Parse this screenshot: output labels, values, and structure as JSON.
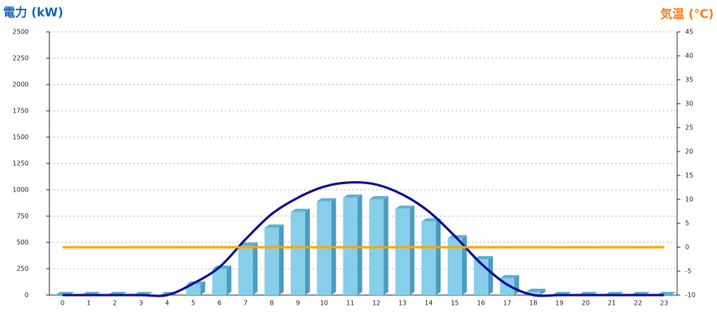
{
  "chart_data": {
    "type": "bar",
    "ylabel": "電力 (kW)",
    "ylabel_color": "#1565c0",
    "y2label": "気温 (℃)",
    "y2label_color": "#f08020",
    "categories": [
      "0",
      "1",
      "2",
      "3",
      "4",
      "5",
      "6",
      "7",
      "8",
      "9",
      "10",
      "11",
      "12",
      "13",
      "14",
      "15",
      "16",
      "17",
      "18",
      "19",
      "20",
      "21",
      "22",
      "23"
    ],
    "ylim": [
      0,
      2500
    ],
    "yticks": [
      0,
      250,
      500,
      750,
      1000,
      1250,
      1500,
      1750,
      2000,
      2250,
      2500
    ],
    "y2lim": [
      -10,
      45
    ],
    "y2ticks": [
      -10,
      -5,
      0,
      5,
      10,
      15,
      20,
      25,
      30,
      35,
      40,
      45
    ],
    "grid": true,
    "series": [
      {
        "type": "bar",
        "color": "#87ceeb",
        "values": [
          0,
          0,
          0,
          0,
          0,
          100,
          250,
          470,
          640,
          790,
          890,
          925,
          910,
          820,
          700,
          540,
          340,
          160,
          30,
          0,
          0,
          0,
          0,
          0
        ]
      },
      {
        "type": "line",
        "color": "#101090",
        "values": [
          0,
          0,
          0,
          0,
          0,
          110,
          265,
          530,
          770,
          925,
          1030,
          1070,
          1050,
          955,
          795,
          560,
          300,
          100,
          0,
          0,
          0,
          0,
          0,
          0
        ]
      },
      {
        "type": "line",
        "axis": "y2",
        "color": "#ffa500",
        "values": [
          0,
          0,
          0,
          0,
          0,
          0,
          0,
          0,
          0,
          0,
          0,
          0,
          0,
          0,
          0,
          0,
          0,
          0,
          0,
          0,
          0,
          0,
          0,
          0
        ]
      }
    ]
  }
}
